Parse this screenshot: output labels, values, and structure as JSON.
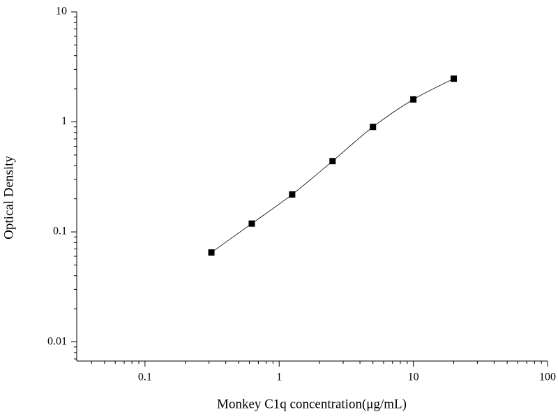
{
  "chart_data": {
    "type": "scatter",
    "xlabel": "Monkey C1q concentration(μg/mL)",
    "ylabel": "Optical Density",
    "x": [
      0.3125,
      0.625,
      1.25,
      2.5,
      5,
      10,
      20
    ],
    "values": [
      0.065,
      0.119,
      0.219,
      0.44,
      0.9,
      1.6,
      2.47
    ],
    "color": "#000000",
    "xscale": "log",
    "yscale": "log",
    "xlim": [
      0.031,
      100
    ],
    "ylim": [
      0.0067,
      10
    ],
    "xticks": [
      0.1,
      1,
      10,
      100
    ],
    "yticks": [
      0.01,
      0.1,
      1,
      10
    ],
    "fit_line": true
  }
}
